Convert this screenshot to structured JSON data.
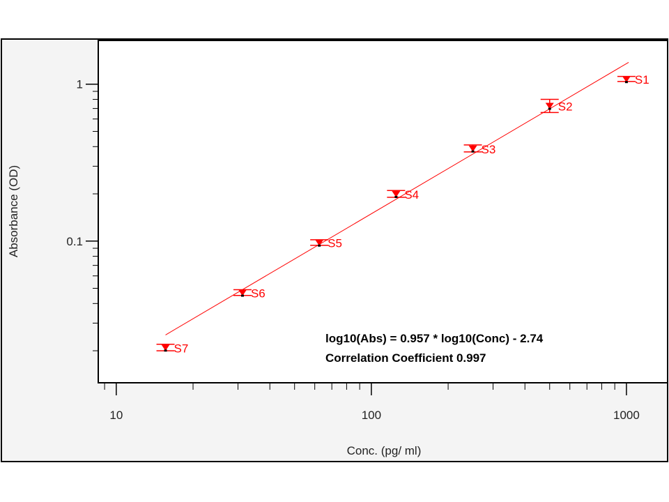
{
  "chart_data": {
    "type": "scatter",
    "title": "",
    "xlabel": "Conc. (pg/ ml)",
    "ylabel": "Absorbance (OD)",
    "x_scale": "log",
    "y_scale": "log",
    "xlim": [
      8.5,
      1450
    ],
    "ylim": [
      0.0125,
      1.9
    ],
    "x_tick_labels": [
      {
        "value": 10,
        "label": "10"
      },
      {
        "value": 100,
        "label": "100"
      },
      {
        "value": 1000,
        "label": "1000"
      }
    ],
    "y_tick_labels": [
      {
        "value": 0.1,
        "label": "0.1"
      },
      {
        "value": 1,
        "label": "1"
      }
    ],
    "grid": false,
    "legend": "none",
    "series": [
      {
        "points": [
          {
            "label": "S1",
            "x": 1000,
            "y": 1.08,
            "err": 0.04
          },
          {
            "label": "S2",
            "x": 500,
            "y": 0.73,
            "err": 0.07
          },
          {
            "label": "S3",
            "x": 250,
            "y": 0.39,
            "err": 0.02
          },
          {
            "label": "S4",
            "x": 125,
            "y": 0.2,
            "err": 0.01
          },
          {
            "label": "S5",
            "x": 62.5,
            "y": 0.098,
            "err": 0.004
          },
          {
            "label": "S6",
            "x": 31.25,
            "y": 0.047,
            "err": 0.002
          },
          {
            "label": "S7",
            "x": 15.6,
            "y": 0.021,
            "err": 0.001
          }
        ]
      }
    ],
    "fit": {
      "slope": 0.957,
      "intercept": -2.74,
      "x_range": [
        15.6,
        1000
      ]
    },
    "annotation": {
      "equation": "log10(Abs) = 0.957 * log10(Conc) - 2.74",
      "correlation": "Correlation Coefficient  0.997"
    },
    "colors": {
      "series": "#ff0000",
      "marker": "#ff0000",
      "axis": "#000000",
      "frame_bg": "#f4f4f4"
    }
  }
}
